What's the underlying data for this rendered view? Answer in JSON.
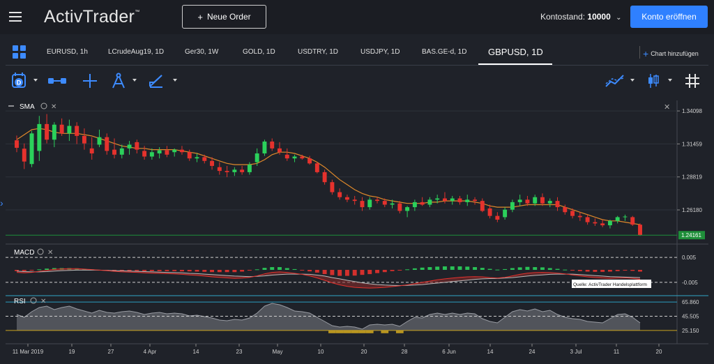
{
  "header": {
    "logo": "ActivTrader",
    "logo_tm": "™",
    "new_order_label": "Neue Order",
    "balance_label": "Kontostand:",
    "balance_value": "10000",
    "open_account_label": "Konto eröffnen"
  },
  "tabs": [
    {
      "label": "EURUSD, 1h"
    },
    {
      "label": "LCrudeAug19, 1D"
    },
    {
      "label": "Ger30, 1W"
    },
    {
      "label": "GOLD, 1D"
    },
    {
      "label": "USDTRY, 1D"
    },
    {
      "label": "USDJPY, 1D"
    },
    {
      "label": "BAS.GE-d, 1D"
    },
    {
      "label": "GBPUSD, 1D",
      "active": true
    }
  ],
  "add_chart_label": "Chart hinzufügen",
  "toolbar": {
    "tools": [
      "calendar-d-icon",
      "measure-icon",
      "crosshair-icon",
      "compass-icon",
      "pencil-icon",
      "indicator-icon",
      "candle-type-icon",
      "grid-hash-icon"
    ],
    "calendar_letter": "D"
  },
  "panels": {
    "main_label": "SMA",
    "macd_label": "MACD",
    "rsi_label": "RSI",
    "source_note": "Quelle: ActivTrader Handelsplattform"
  },
  "colors": {
    "bull": "#2bd15b",
    "bear": "#e5322d",
    "sma": "#e0892a",
    "accent": "#2f80ff",
    "current_price": "#1f8f3a"
  },
  "chart_data": [
    {
      "type": "candlestick",
      "title": "GBPUSD, 1D",
      "indicator": "SMA",
      "y_ticks": [
        "1.34098",
        "1.31459",
        "1.28819",
        "1.26180"
      ],
      "ylim": [
        1.2395,
        1.3455
      ],
      "current_price": "1.24161",
      "x_ticks": [
        "11 Mar 2019",
        "19",
        "27",
        "4 Apr",
        "14",
        "23",
        "May",
        "10",
        "20",
        "28",
        "6 Jun",
        "14",
        "24",
        "3 Jul",
        "11",
        "20"
      ],
      "candles": [
        {
          "o": 1.3175,
          "h": 1.3213,
          "l": 1.308,
          "c": 1.3115
        },
        {
          "o": 1.3108,
          "h": 1.315,
          "l": 1.2945,
          "c": 1.3005
        },
        {
          "o": 1.2985,
          "h": 1.325,
          "l": 1.296,
          "c": 1.323
        },
        {
          "o": 1.309,
          "h": 1.337,
          "l": 1.301,
          "c": 1.3305
        },
        {
          "o": 1.3305,
          "h": 1.3385,
          "l": 1.315,
          "c": 1.318
        },
        {
          "o": 1.318,
          "h": 1.332,
          "l": 1.312,
          "c": 1.33
        },
        {
          "o": 1.33,
          "h": 1.335,
          "l": 1.321,
          "c": 1.323
        },
        {
          "o": 1.323,
          "h": 1.334,
          "l": 1.317,
          "c": 1.329
        },
        {
          "o": 1.329,
          "h": 1.332,
          "l": 1.3145,
          "c": 1.321
        },
        {
          "o": 1.321,
          "h": 1.327,
          "l": 1.31,
          "c": 1.315
        },
        {
          "o": 1.311,
          "h": 1.32,
          "l": 1.302,
          "c": 1.307
        },
        {
          "o": 1.314,
          "h": 1.326,
          "l": 1.312,
          "c": 1.32
        },
        {
          "o": 1.32,
          "h": 1.323,
          "l": 1.306,
          "c": 1.309
        },
        {
          "o": 1.31,
          "h": 1.319,
          "l": 1.303,
          "c": 1.306
        },
        {
          "o": 1.306,
          "h": 1.314,
          "l": 1.303,
          "c": 1.311
        },
        {
          "o": 1.311,
          "h": 1.317,
          "l": 1.306,
          "c": 1.314
        },
        {
          "o": 1.316,
          "h": 1.318,
          "l": 1.307,
          "c": 1.31
        },
        {
          "o": 1.309,
          "h": 1.313,
          "l": 1.302,
          "c": 1.3045
        },
        {
          "o": 1.3045,
          "h": 1.311,
          "l": 1.302,
          "c": 1.308
        },
        {
          "o": 1.307,
          "h": 1.312,
          "l": 1.303,
          "c": 1.3095
        },
        {
          "o": 1.3095,
          "h": 1.313,
          "l": 1.304,
          "c": 1.306
        },
        {
          "o": 1.308,
          "h": 1.311,
          "l": 1.3045,
          "c": 1.31
        },
        {
          "o": 1.31,
          "h": 1.313,
          "l": 1.306,
          "c": 1.308
        },
        {
          "o": 1.308,
          "h": 1.31,
          "l": 1.301,
          "c": 1.303
        },
        {
          "o": 1.303,
          "h": 1.307,
          "l": 1.3,
          "c": 1.304
        },
        {
          "o": 1.304,
          "h": 1.306,
          "l": 1.299,
          "c": 1.301
        },
        {
          "o": 1.301,
          "h": 1.304,
          "l": 1.294,
          "c": 1.297
        },
        {
          "o": 1.296,
          "h": 1.3,
          "l": 1.29,
          "c": 1.293
        },
        {
          "o": 1.293,
          "h": 1.297,
          "l": 1.288,
          "c": 1.292
        },
        {
          "o": 1.292,
          "h": 1.296,
          "l": 1.289,
          "c": 1.294
        },
        {
          "o": 1.294,
          "h": 1.297,
          "l": 1.29,
          "c": 1.292
        },
        {
          "o": 1.292,
          "h": 1.3,
          "l": 1.29,
          "c": 1.298
        },
        {
          "o": 1.3,
          "h": 1.311,
          "l": 1.297,
          "c": 1.307
        },
        {
          "o": 1.307,
          "h": 1.318,
          "l": 1.305,
          "c": 1.3165
        },
        {
          "o": 1.3165,
          "h": 1.319,
          "l": 1.309,
          "c": 1.311
        },
        {
          "o": 1.311,
          "h": 1.316,
          "l": 1.306,
          "c": 1.308
        },
        {
          "o": 1.306,
          "h": 1.311,
          "l": 1.301,
          "c": 1.303
        },
        {
          "o": 1.303,
          "h": 1.306,
          "l": 1.3,
          "c": 1.3045
        },
        {
          "o": 1.3045,
          "h": 1.306,
          "l": 1.302,
          "c": 1.303
        },
        {
          "o": 1.303,
          "h": 1.305,
          "l": 1.298,
          "c": 1.299
        },
        {
          "o": 1.299,
          "h": 1.3,
          "l": 1.291,
          "c": 1.292
        },
        {
          "o": 1.292,
          "h": 1.294,
          "l": 1.282,
          "c": 1.284
        },
        {
          "o": 1.284,
          "h": 1.286,
          "l": 1.274,
          "c": 1.276
        },
        {
          "o": 1.276,
          "h": 1.279,
          "l": 1.27,
          "c": 1.272
        },
        {
          "o": 1.272,
          "h": 1.274,
          "l": 1.268,
          "c": 1.27
        },
        {
          "o": 1.27,
          "h": 1.273,
          "l": 1.266,
          "c": 1.269
        },
        {
          "o": 1.269,
          "h": 1.272,
          "l": 1.261,
          "c": 1.264
        },
        {
          "o": 1.264,
          "h": 1.272,
          "l": 1.262,
          "c": 1.27
        },
        {
          "o": 1.27,
          "h": 1.272,
          "l": 1.267,
          "c": 1.269
        },
        {
          "o": 1.269,
          "h": 1.271,
          "l": 1.264,
          "c": 1.266
        },
        {
          "o": 1.266,
          "h": 1.27,
          "l": 1.263,
          "c": 1.267
        },
        {
          "o": 1.267,
          "h": 1.269,
          "l": 1.259,
          "c": 1.261
        },
        {
          "o": 1.261,
          "h": 1.265,
          "l": 1.256,
          "c": 1.264
        },
        {
          "o": 1.264,
          "h": 1.27,
          "l": 1.261,
          "c": 1.268
        },
        {
          "o": 1.268,
          "h": 1.272,
          "l": 1.265,
          "c": 1.266
        },
        {
          "o": 1.266,
          "h": 1.272,
          "l": 1.264,
          "c": 1.27
        },
        {
          "o": 1.27,
          "h": 1.274,
          "l": 1.267,
          "c": 1.271
        },
        {
          "o": 1.271,
          "h": 1.276,
          "l": 1.267,
          "c": 1.269
        },
        {
          "o": 1.269,
          "h": 1.273,
          "l": 1.266,
          "c": 1.271
        },
        {
          "o": 1.271,
          "h": 1.273,
          "l": 1.266,
          "c": 1.268
        },
        {
          "o": 1.268,
          "h": 1.274,
          "l": 1.265,
          "c": 1.27
        },
        {
          "o": 1.27,
          "h": 1.272,
          "l": 1.266,
          "c": 1.269
        },
        {
          "o": 1.269,
          "h": 1.271,
          "l": 1.26,
          "c": 1.261
        },
        {
          "o": 1.263,
          "h": 1.266,
          "l": 1.255,
          "c": 1.257
        },
        {
          "o": 1.257,
          "h": 1.26,
          "l": 1.252,
          "c": 1.254
        },
        {
          "o": 1.256,
          "h": 1.264,
          "l": 1.254,
          "c": 1.262
        },
        {
          "o": 1.262,
          "h": 1.27,
          "l": 1.26,
          "c": 1.268
        },
        {
          "o": 1.268,
          "h": 1.274,
          "l": 1.265,
          "c": 1.27
        },
        {
          "o": 1.27,
          "h": 1.273,
          "l": 1.265,
          "c": 1.267
        },
        {
          "o": 1.267,
          "h": 1.274,
          "l": 1.265,
          "c": 1.272
        },
        {
          "o": 1.272,
          "h": 1.275,
          "l": 1.265,
          "c": 1.267
        },
        {
          "o": 1.267,
          "h": 1.271,
          "l": 1.264,
          "c": 1.269
        },
        {
          "o": 1.269,
          "h": 1.272,
          "l": 1.261,
          "c": 1.264
        },
        {
          "o": 1.264,
          "h": 1.266,
          "l": 1.258,
          "c": 1.26
        },
        {
          "o": 1.261,
          "h": 1.263,
          "l": 1.255,
          "c": 1.257
        },
        {
          "o": 1.257,
          "h": 1.26,
          "l": 1.253,
          "c": 1.256
        },
        {
          "o": 1.256,
          "h": 1.258,
          "l": 1.25,
          "c": 1.252
        },
        {
          "o": 1.252,
          "h": 1.255,
          "l": 1.249,
          "c": 1.251
        },
        {
          "o": 1.251,
          "h": 1.254,
          "l": 1.248,
          "c": 1.2495
        },
        {
          "o": 1.2495,
          "h": 1.254,
          "l": 1.247,
          "c": 1.253
        },
        {
          "o": 1.253,
          "h": 1.257,
          "l": 1.251,
          "c": 1.256
        },
        {
          "o": 1.256,
          "h": 1.258,
          "l": 1.253,
          "c": 1.2565
        },
        {
          "o": 1.256,
          "h": 1.257,
          "l": 1.249,
          "c": 1.25
        },
        {
          "o": 1.25,
          "h": 1.251,
          "l": 1.241,
          "c": 1.2416
        }
      ],
      "sma": [
        1.318,
        1.322,
        1.326,
        1.327,
        1.326,
        1.324,
        1.323,
        1.323,
        1.323,
        1.322,
        1.321,
        1.319,
        1.317,
        1.315,
        1.313,
        1.312,
        1.311,
        1.311,
        1.31,
        1.31,
        1.31,
        1.31,
        1.309,
        1.308,
        1.307,
        1.305,
        1.303,
        1.301,
        1.299,
        1.298,
        1.298,
        1.298,
        1.299,
        1.302,
        1.306,
        1.308,
        1.308,
        1.307,
        1.305,
        1.303,
        1.3,
        1.296,
        1.291,
        1.286,
        1.282,
        1.278,
        1.275,
        1.273,
        1.272,
        1.27,
        1.269,
        1.268,
        1.267,
        1.267,
        1.267,
        1.268,
        1.268,
        1.269,
        1.269,
        1.269,
        1.269,
        1.268,
        1.267,
        1.265,
        1.264,
        1.264,
        1.264,
        1.265,
        1.266,
        1.266,
        1.266,
        1.266,
        1.266,
        1.264,
        1.262,
        1.26,
        1.258,
        1.256,
        1.254,
        1.253,
        1.253,
        1.252,
        1.251,
        1.25
      ]
    },
    {
      "type": "line",
      "title": "MACD",
      "y_ticks": [
        "0.005",
        "-0.005"
      ],
      "ylim": [
        -0.0095,
        0.0095
      ],
      "macd": [
        -0.001,
        -0.0012,
        -0.001,
        -0.0006,
        -0.0002,
        0.0002,
        0.0004,
        0.0005,
        0.0005,
        0.0003,
        0.0001,
        -0.0001,
        -0.0003,
        -0.0006,
        -0.0008,
        -0.0009,
        -0.001,
        -0.0012,
        -0.0013,
        -0.0014,
        -0.0015,
        -0.0016,
        -0.0018,
        -0.002,
        -0.0022,
        -0.0025,
        -0.0028,
        -0.003,
        -0.0032,
        -0.0034,
        -0.0033,
        -0.003,
        -0.0024,
        -0.0016,
        -0.001,
        -0.0008,
        -0.001,
        -0.0014,
        -0.0018,
        -0.0024,
        -0.0032,
        -0.0042,
        -0.0052,
        -0.006,
        -0.0066,
        -0.007,
        -0.0072,
        -0.0073,
        -0.0072,
        -0.007,
        -0.0067,
        -0.0064,
        -0.006,
        -0.0055,
        -0.005,
        -0.0045,
        -0.004,
        -0.0036,
        -0.0033,
        -0.003,
        -0.0028,
        -0.0027,
        -0.0028,
        -0.0031,
        -0.0033,
        -0.003,
        -0.0024,
        -0.0018,
        -0.0013,
        -0.0011,
        -0.001,
        -0.0011,
        -0.0013,
        -0.0016,
        -0.002,
        -0.0024,
        -0.0028,
        -0.0031,
        -0.0033,
        -0.0034,
        -0.0033,
        -0.0032,
        -0.0034,
        -0.0038
      ],
      "signal": [
        -0.0005,
        -0.0007,
        -0.0008,
        -0.0008,
        -0.0007,
        -0.0005,
        -0.0003,
        -0.0002,
        -0.0001,
        -0.0001,
        -0.0001,
        -0.0001,
        -0.0002,
        -0.0003,
        -0.0004,
        -0.0005,
        -0.0006,
        -0.0007,
        -0.0008,
        -0.0009,
        -0.001,
        -0.0011,
        -0.0012,
        -0.0014,
        -0.0015,
        -0.0017,
        -0.0019,
        -0.0021,
        -0.0023,
        -0.0025,
        -0.0026,
        -0.0027,
        -0.0026,
        -0.0024,
        -0.0021,
        -0.0019,
        -0.0017,
        -0.0017,
        -0.0017,
        -0.0018,
        -0.0021,
        -0.0025,
        -0.0031,
        -0.0036,
        -0.0042,
        -0.0047,
        -0.0052,
        -0.0056,
        -0.0059,
        -0.0061,
        -0.0062,
        -0.0063,
        -0.0062,
        -0.0061,
        -0.0059,
        -0.0056,
        -0.0053,
        -0.005,
        -0.0047,
        -0.0044,
        -0.0041,
        -0.0038,
        -0.0036,
        -0.0035,
        -0.0034,
        -0.0033,
        -0.0031,
        -0.0028,
        -0.0025,
        -0.0022,
        -0.002,
        -0.0018,
        -0.0017,
        -0.0017,
        -0.0017,
        -0.0019,
        -0.0021,
        -0.0023,
        -0.0025,
        -0.0027,
        -0.0028,
        -0.0029,
        -0.003,
        -0.0031
      ]
    },
    {
      "type": "area",
      "title": "RSI",
      "y_ticks": [
        "65.860",
        "45.505",
        "25.150"
      ],
      "ylim": [
        18,
        72
      ],
      "rsi": [
        48,
        44,
        52,
        58,
        60,
        55,
        58,
        60,
        56,
        53,
        50,
        54,
        51,
        50,
        52,
        53,
        51,
        48,
        50,
        51,
        49,
        50,
        49,
        46,
        47,
        45,
        43,
        40,
        39,
        41,
        40,
        43,
        50,
        60,
        64,
        62,
        58,
        53,
        52,
        50,
        44,
        38,
        32,
        30,
        31,
        30,
        27,
        33,
        34,
        33,
        34,
        31,
        38,
        44,
        43,
        48,
        50,
        48,
        50,
        48,
        50,
        49,
        42,
        38,
        36,
        44,
        52,
        55,
        53,
        56,
        52,
        54,
        48,
        44,
        42,
        41,
        38,
        37,
        36,
        42,
        48,
        49,
        44,
        36
      ]
    }
  ]
}
